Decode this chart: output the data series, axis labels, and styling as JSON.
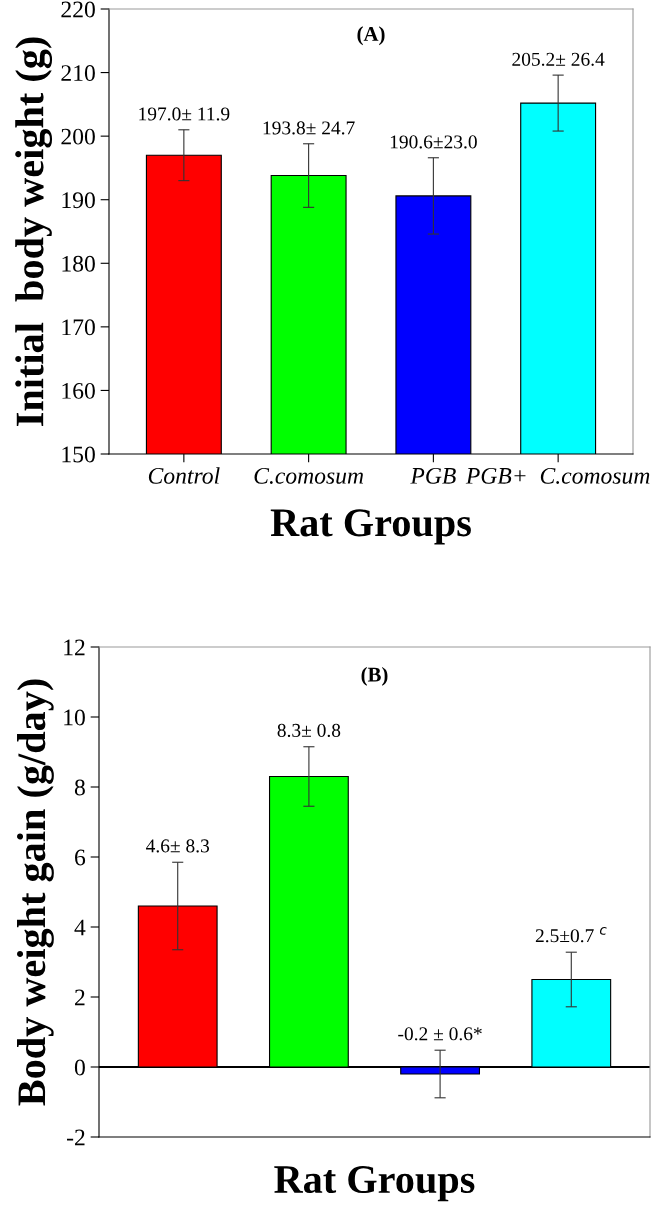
{
  "chart_data": [
    {
      "type": "bar",
      "title": "(A)",
      "xlabel": "Rat Groups",
      "ylabel": "Initial  body weight (g)",
      "categories": [
        "Control",
        "C.comosum",
        "PGB",
        "PGB+  C.comosum"
      ],
      "values": [
        197.0,
        193.8,
        190.6,
        205.2
      ],
      "colors": [
        "#ff0000",
        "#00ff00",
        "#0000ff",
        "#00ffff"
      ],
      "errors": [
        4.0,
        5.0,
        6.0,
        4.4
      ],
      "value_labels": [
        "197.0± 11.9",
        "193.8± 24.7",
        "190.6±23.0",
        "205.2± 26.4"
      ],
      "ylim": [
        150,
        220
      ],
      "yticks": [
        150,
        160,
        170,
        180,
        190,
        200,
        210,
        220
      ],
      "grid": false,
      "legend": false
    },
    {
      "type": "bar",
      "title": "(B)",
      "xlabel": "Rat Groups",
      "ylabel": "Body weight gain (g/day)",
      "categories": [
        null,
        null,
        null,
        null
      ],
      "values": [
        4.6,
        8.3,
        -0.2,
        2.5
      ],
      "colors": [
        "#ff0000",
        "#00ff00",
        "#0000ff",
        "#00ffff"
      ],
      "errors": [
        1.25,
        0.85,
        0.68,
        0.78
      ],
      "value_labels": [
        "4.6± 8.3",
        "8.3± 0.8",
        "-0.2 ± 0.6*",
        "2.5±0.7 $^{c}$"
      ],
      "ylim": [
        -2,
        12
      ],
      "yticks": [
        {
          "value": -2,
          "label": "-2"
        },
        0,
        2,
        4,
        6,
        8,
        10,
        12
      ],
      "ref_lines": [
        {
          "axis": "y",
          "value": 0,
          "color": "#000000"
        }
      ],
      "tick_labels": "y",
      "grid": false,
      "legend": false
    }
  ]
}
